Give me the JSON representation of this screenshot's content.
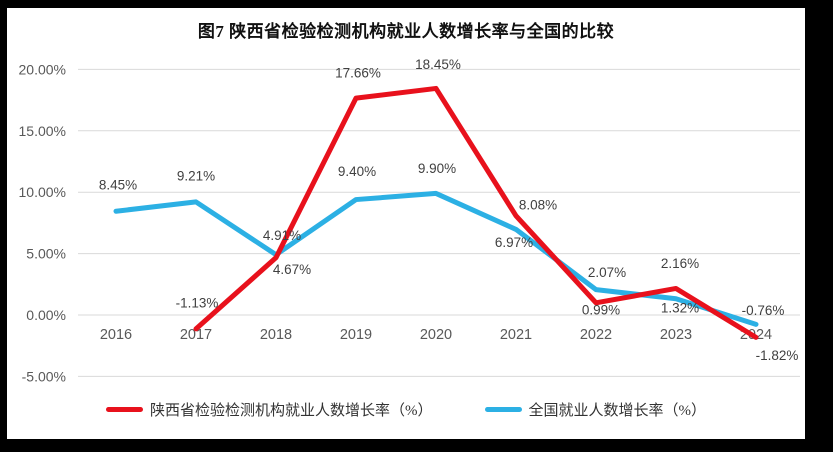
{
  "title": "图7 陕西省检验检测机构就业人数增长率与全国的比较",
  "colors": {
    "frame": "#000000",
    "background": "#ffffff",
    "grid": "#d9d9d9",
    "axis_text": "#595959",
    "label_text": "#404040",
    "series_red": "#e8111c",
    "series_blue": "#2cb0e4"
  },
  "chart_data": {
    "type": "line",
    "title": "图7 陕西省检验检测机构就业人数增长率与全国的比较",
    "categories": [
      "2016",
      "2017",
      "2018",
      "2019",
      "2020",
      "2021",
      "2022",
      "2023",
      "2024"
    ],
    "series": [
      {
        "name": "陕西省检验检测机构就业人数增长率（%）",
        "color": "#e8111c",
        "values": [
          null,
          -1.13,
          4.67,
          17.66,
          18.45,
          8.08,
          0.99,
          2.16,
          -1.82
        ],
        "labels": [
          "",
          "-1.13%",
          "4.67%",
          "17.66%",
          "18.45%",
          "8.08%",
          "0.99%",
          "2.16%",
          "-1.82%"
        ],
        "label_offsets": [
          [
            0,
            0
          ],
          [
            1,
            -26
          ],
          [
            16,
            12
          ],
          [
            2,
            -25
          ],
          [
            2,
            -24
          ],
          [
            22,
            -11
          ],
          [
            5,
            7
          ],
          [
            4,
            -25
          ],
          [
            21,
            18
          ]
        ]
      },
      {
        "name": "全国就业人数增长率（%）",
        "color": "#2cb0e4",
        "values": [
          8.45,
          9.21,
          4.91,
          9.4,
          9.9,
          6.97,
          2.07,
          1.32,
          -0.76
        ],
        "labels": [
          "8.45%",
          "9.21%",
          "4.91%",
          "9.40%",
          "9.90%",
          "6.97%",
          "2.07%",
          "1.32%",
          "-0.76%"
        ],
        "label_offsets": [
          [
            2,
            -26
          ],
          [
            0,
            -26
          ],
          [
            6,
            -19
          ],
          [
            1,
            -28
          ],
          [
            1,
            -25
          ],
          [
            -2,
            13
          ],
          [
            11,
            -17
          ],
          [
            4,
            9
          ],
          [
            7,
            -14
          ]
        ]
      }
    ],
    "xlabel": "",
    "ylabel": "",
    "ylim": [
      -5,
      20
    ],
    "y_tick_values": [
      20,
      15,
      10,
      5,
      0,
      -5
    ],
    "y_tick_labels": [
      "20.00%",
      "15.00%",
      "10.00%",
      "5.00%",
      "0.00%",
      "-5.00%"
    ],
    "grid": true,
    "legend_position": "bottom"
  }
}
